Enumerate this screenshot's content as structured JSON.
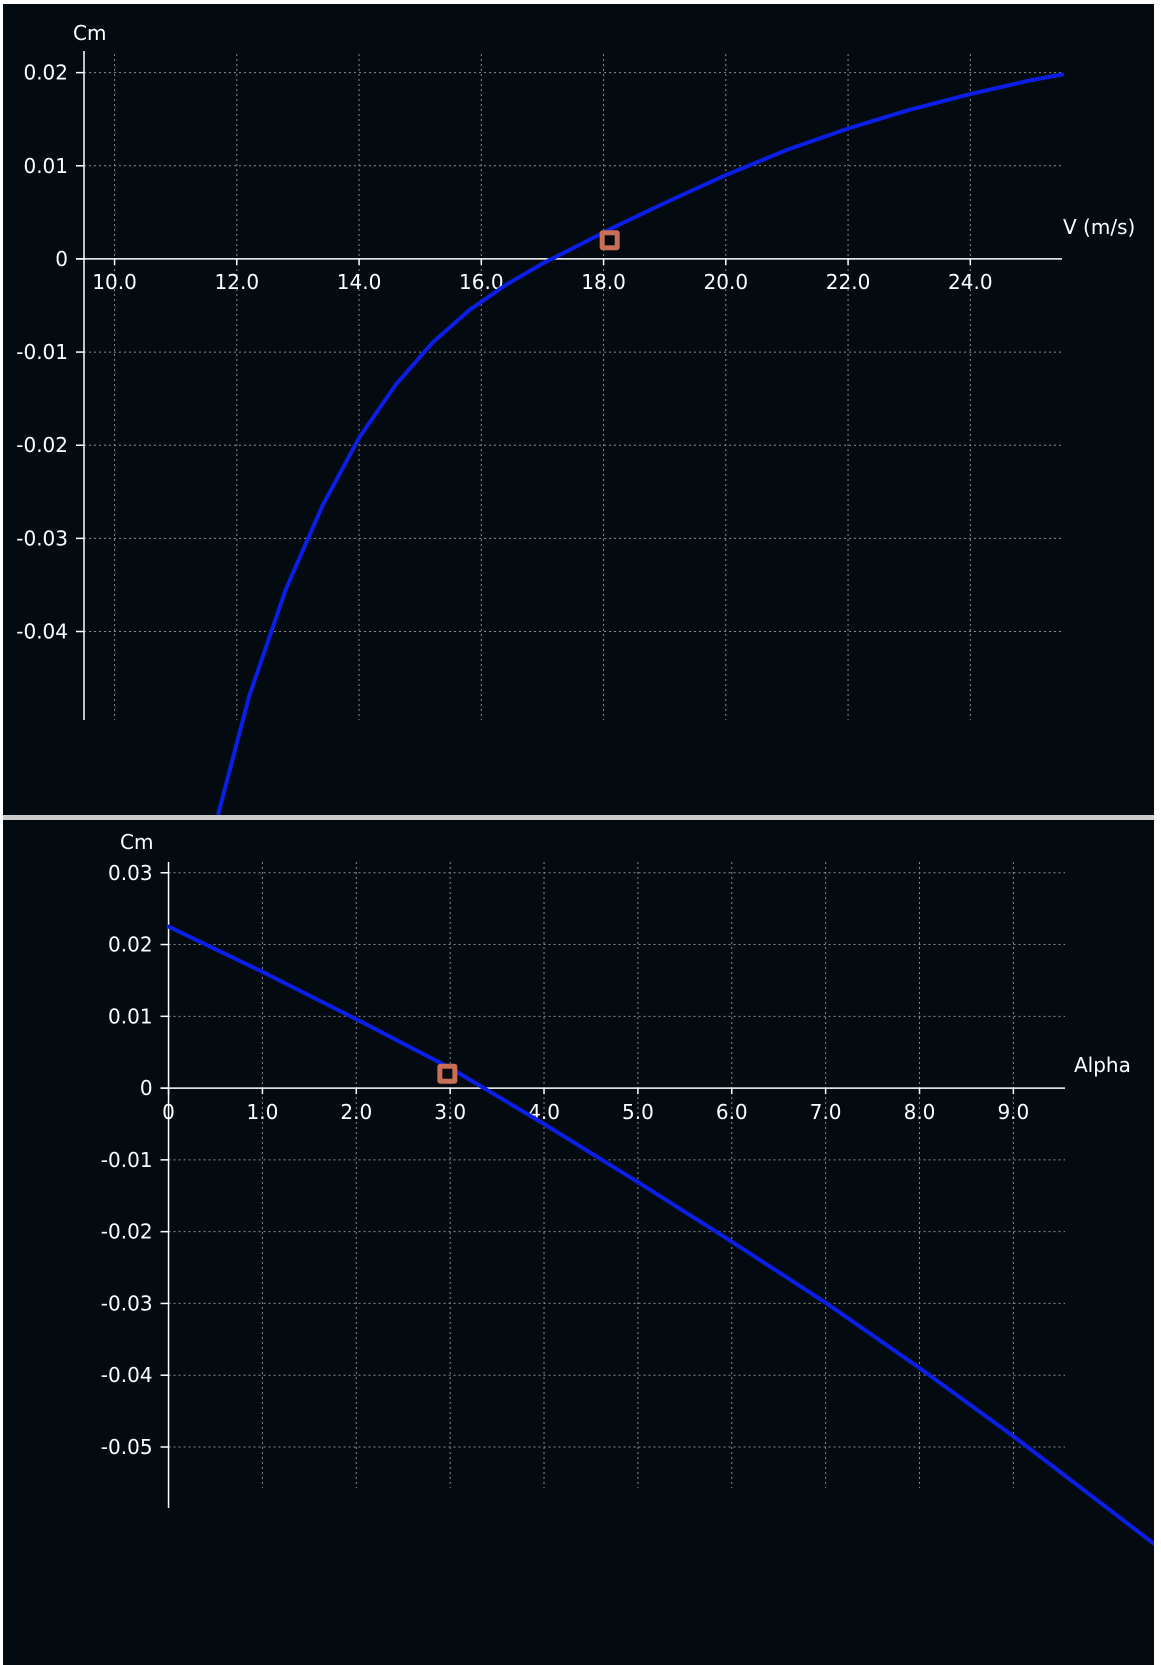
{
  "chart_data": [
    {
      "type": "line",
      "ylabel": "Cm",
      "xlabel": "V (m/s)",
      "x_ticks": [
        "10.0",
        "12.0",
        "14.0",
        "16.0",
        "18.0",
        "20.0",
        "22.0",
        "24.0"
      ],
      "y_ticks": [
        "0.02",
        "0.01",
        "0",
        "-0.01",
        "-0.02",
        "-0.03",
        "-0.04"
      ],
      "xlim": [
        9.5,
        25.5
      ],
      "ylim": [
        -0.0495,
        0.022
      ],
      "grid": true,
      "series": [
        {
          "color": "#0a1ee6",
          "x": [
            11.7,
            12.2,
            12.8,
            13.4,
            14.0,
            14.6,
            15.2,
            15.8,
            16.4,
            17.0,
            17.6,
            18.2,
            19.0,
            20.0,
            21.0,
            22.0,
            23.0,
            24.0,
            25.0,
            25.5
          ],
          "y": [
            -0.0595,
            -0.047,
            -0.0355,
            -0.0265,
            -0.0192,
            -0.0135,
            -0.009,
            -0.0055,
            -0.0028,
            -0.0005,
            0.0015,
            0.0035,
            0.006,
            0.009,
            0.0117,
            0.014,
            0.016,
            0.0177,
            0.0192,
            0.0198
          ]
        }
      ],
      "marker": {
        "x": 18.1,
        "y": 0.002,
        "color": "#c86f55"
      },
      "colors": {
        "background": "#030b11",
        "axis": "#ffffff",
        "grid": "#8a8a8a"
      }
    },
    {
      "type": "line",
      "ylabel": "Cm",
      "xlabel": "Alpha",
      "x_ticks": [
        "0",
        "1.0",
        "2.0",
        "3.0",
        "4.0",
        "5.0",
        "6.0",
        "7.0",
        "8.0",
        "9.0"
      ],
      "y_ticks": [
        "0.03",
        "0.02",
        "0.01",
        "0",
        "-0.01",
        "-0.02",
        "-0.03",
        "-0.04",
        "-0.05"
      ],
      "xlim": [
        -0.4,
        9.55
      ],
      "ylim": [
        -0.0585,
        0.0315
      ],
      "grid": true,
      "series": [
        {
          "color": "#0a1ee6",
          "x": [
            0,
            1,
            2,
            3,
            4,
            5,
            6,
            7,
            8,
            9,
            10.5
          ],
          "y": [
            0.0225,
            0.0162,
            0.0096,
            0.0028,
            -0.005,
            -0.0131,
            -0.0214,
            -0.0299,
            -0.039,
            -0.0485,
            -0.0635
          ]
        }
      ],
      "marker": {
        "x": 2.97,
        "y": 0.002,
        "color": "#c86f55"
      },
      "colors": {
        "background": "#030b11",
        "axis": "#ffffff",
        "grid": "#8a8a8a"
      }
    }
  ]
}
